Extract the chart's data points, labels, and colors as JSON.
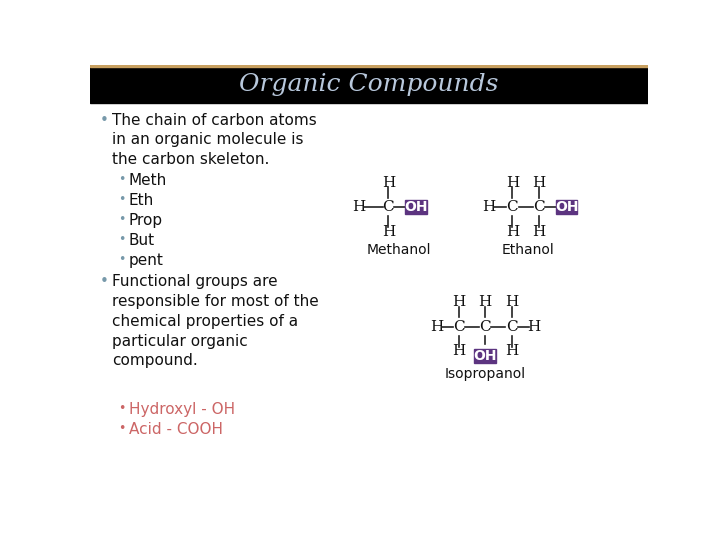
{
  "title": "Organic Compounds",
  "title_color": "#B8C8DC",
  "title_bg": "#000000",
  "slide_bg": "#FFFFFF",
  "bullet1_text": "The chain of carbon atoms\nin an organic molecule is\nthe carbon skeleton.",
  "sub_bullets1": [
    "Meth",
    "Eth",
    "Prop",
    "But",
    "pent"
  ],
  "bullet2_text": "Functional groups are\nresponsible for most of the\nchemical properties of a\nparticular organic\ncompound.",
  "sub_bullets2_color": "#CC6666",
  "sub_bullets2": [
    "Hydroxyl - OH",
    "Acid - COOH"
  ],
  "bullet_color": "#7799AA",
  "text_color": "#111111",
  "oh_box_color": "#5C3480",
  "oh_text_color": "#FFFFFF",
  "molecule_text_color": "#111111",
  "label_methanol": "Methanol",
  "label_ethanol": "Ethanol",
  "label_isopropanol": "Isopropanol",
  "gold_line_color": "#C8A060"
}
